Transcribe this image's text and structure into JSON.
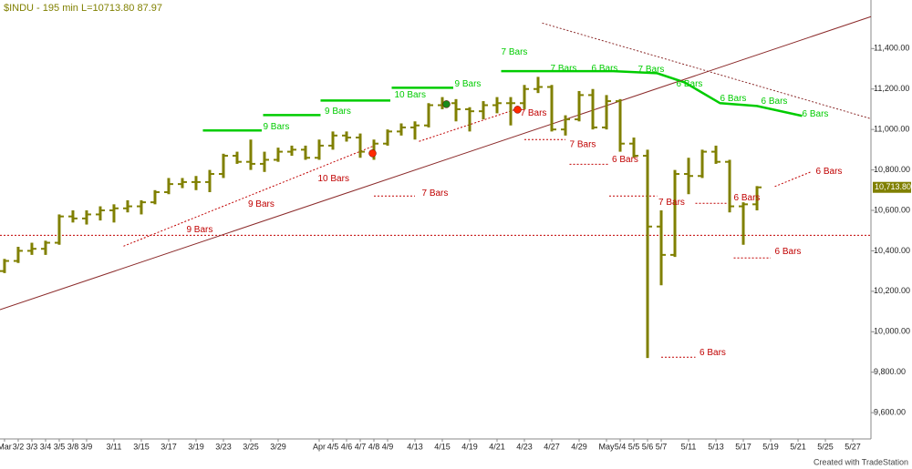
{
  "chart_data": {
    "type": "ohlc",
    "title": "$INDU - 195 min  L=10713.80  87.97",
    "footer": "Created with TradeStation",
    "color": "#808000",
    "ylim": [
      9470,
      11640
    ],
    "xlim": [
      -0.33,
      63.33
    ],
    "yticks": [
      {
        "value": 9600,
        "label": "9,600.00"
      },
      {
        "value": 9800,
        "label": "9,800.00"
      },
      {
        "value": 10000,
        "label": "10,000.00"
      },
      {
        "value": 10200,
        "label": "10,200.00"
      },
      {
        "value": 10400,
        "label": "10,400.00"
      },
      {
        "value": 10600,
        "label": "10,600.00"
      },
      {
        "value": 10800,
        "label": "10,800.00"
      },
      {
        "value": 11000,
        "label": "11,000.00"
      },
      {
        "value": 11200,
        "label": "11,200.00"
      },
      {
        "value": 11400,
        "label": "11,400.00"
      }
    ],
    "last_price": {
      "value": 10713.8,
      "label": "10,713.80"
    },
    "categories": [
      "Mar",
      "3/2",
      "3/3",
      "3/4",
      "3/5",
      "3/8",
      "3/9",
      null,
      "3/11",
      null,
      "3/15",
      null,
      "3/17",
      null,
      "3/19",
      null,
      "3/23",
      null,
      "3/25",
      null,
      "3/29",
      null,
      null,
      "Apr",
      "4/5",
      "4/6",
      "4/7",
      "4/8",
      "4/9",
      null,
      "4/13",
      null,
      "4/15",
      null,
      "4/19",
      null,
      "4/21",
      null,
      "4/23",
      null,
      "4/27",
      null,
      "4/29",
      null,
      "May",
      "5/4",
      "5/5",
      "5/6",
      "5/7",
      null,
      "5/11",
      null,
      "5/13",
      null,
      "5/17",
      null,
      "5/19",
      null,
      "5/21",
      null,
      "5/25",
      null,
      "5/27"
    ],
    "ohlc": [
      [
        10300,
        10360,
        10290,
        10350
      ],
      [
        10350,
        10420,
        10340,
        10400
      ],
      [
        10400,
        10440,
        10380,
        10410
      ],
      [
        10410,
        10450,
        10380,
        10440
      ],
      [
        10440,
        10580,
        10430,
        10570
      ],
      [
        10570,
        10600,
        10540,
        10560
      ],
      [
        10560,
        10600,
        10530,
        10580
      ],
      [
        10580,
        10620,
        10550,
        10600
      ],
      [
        10600,
        10630,
        10540,
        10610
      ],
      [
        10610,
        10650,
        10590,
        10620
      ],
      [
        10620,
        10650,
        10580,
        10640
      ],
      [
        10640,
        10700,
        10630,
        10690
      ],
      [
        10690,
        10760,
        10680,
        10730
      ],
      [
        10730,
        10760,
        10710,
        10740
      ],
      [
        10740,
        10770,
        10700,
        10740
      ],
      [
        10740,
        10800,
        10690,
        10780
      ],
      [
        10780,
        10880,
        10760,
        10870
      ],
      [
        10870,
        10890,
        10830,
        10840
      ],
      [
        10840,
        10950,
        10800,
        10830
      ],
      [
        10830,
        10890,
        10790,
        10850
      ],
      [
        10850,
        10910,
        10840,
        10890
      ],
      [
        10890,
        10920,
        10870,
        10900
      ],
      [
        10900,
        10920,
        10850,
        10860
      ],
      [
        10860,
        10950,
        10850,
        10920
      ],
      [
        10920,
        10990,
        10900,
        10970
      ],
      [
        10970,
        10990,
        10940,
        10960
      ],
      [
        10960,
        10980,
        10860,
        10890
      ],
      [
        10890,
        10950,
        10850,
        10930
      ],
      [
        10930,
        11000,
        10920,
        10990
      ],
      [
        10990,
        11030,
        10970,
        11010
      ],
      [
        11010,
        11040,
        10950,
        11020
      ],
      [
        11020,
        11130,
        11010,
        11120
      ],
      [
        11120,
        11160,
        11100,
        11130
      ],
      [
        11130,
        11150,
        11040,
        11100
      ],
      [
        11100,
        11110,
        10990,
        11090
      ],
      [
        11090,
        11140,
        11050,
        11120
      ],
      [
        11120,
        11160,
        11080,
        11130
      ],
      [
        11130,
        11160,
        11020,
        11130
      ],
      [
        11130,
        11220,
        11100,
        11200
      ],
      [
        11200,
        11260,
        11180,
        11210
      ],
      [
        11210,
        11220,
        10990,
        11000
      ],
      [
        11000,
        11070,
        10970,
        11050
      ],
      [
        11050,
        11190,
        11040,
        11170
      ],
      [
        11170,
        11200,
        11000,
        11010
      ],
      [
        11010,
        11170,
        11000,
        11140
      ],
      [
        11140,
        11150,
        10890,
        10930
      ],
      [
        10930,
        10960,
        10860,
        10870
      ],
      [
        10870,
        10900,
        9870,
        10520
      ],
      [
        10520,
        10600,
        10230,
        10380
      ],
      [
        10380,
        10800,
        10370,
        10780
      ],
      [
        10780,
        10860,
        10680,
        10770
      ],
      [
        10770,
        10900,
        10760,
        10890
      ],
      [
        10890,
        10920,
        10830,
        10840
      ],
      [
        10840,
        10850,
        10590,
        10620
      ],
      [
        10620,
        10640,
        10430,
        10630
      ],
      [
        10630,
        10720,
        10600,
        10713.8
      ],
      null,
      null,
      null,
      null,
      null,
      null,
      null
    ],
    "overlays": [
      {
        "color": "#00cc00",
        "dash": false,
        "x": [
          14.5,
          18.8
        ],
        "y": [
          10995,
          10995
        ]
      },
      {
        "color": "#00cc00",
        "dash": false,
        "x": [
          18.9,
          23.1
        ],
        "y": [
          11071,
          11071
        ]
      },
      {
        "color": "#00cc00",
        "dash": false,
        "x": [
          23.1,
          28.2
        ],
        "y": [
          11143,
          11143
        ]
      },
      {
        "color": "#00cc00",
        "dash": false,
        "x": [
          28.3,
          32.8
        ],
        "y": [
          11206,
          11206
        ]
      },
      {
        "color": "#00cc00",
        "dash": false,
        "x": [
          36.3,
          44.5,
          47.7,
          49.7,
          52.3,
          55,
          58.3
        ],
        "y": [
          11288,
          11288,
          11278,
          11233,
          11130,
          11116,
          11067
        ]
      },
      {
        "color": "#c00000",
        "dash": true,
        "x": [
          27,
          30
        ],
        "y": [
          10671,
          10671
        ]
      },
      {
        "color": "#c00000",
        "dash": true,
        "x": [
          38,
          41
        ],
        "y": [
          10950,
          10950
        ]
      },
      {
        "color": "#c00000",
        "dash": true,
        "x": [
          41.3,
          44.1
        ],
        "y": [
          10828,
          10828
        ]
      },
      {
        "color": "#c00000",
        "dash": true,
        "x": [
          44.2,
          47.7
        ],
        "y": [
          10671,
          10671
        ]
      },
      {
        "color": "#c00000",
        "dash": true,
        "x": [
          50.5,
          53
        ],
        "y": [
          10635,
          10635
        ]
      },
      {
        "color": "#c00000",
        "dash": true,
        "x": [
          53.3,
          56
        ],
        "y": [
          10365,
          10365
        ]
      },
      {
        "color": "#c00000",
        "dash": true,
        "x": [
          48,
          50.5
        ],
        "y": [
          9874,
          9874
        ]
      },
      {
        "color": "#c00000",
        "dash": true,
        "x": [
          56.3,
          59
        ],
        "y": [
          10718,
          10792
        ]
      },
      {
        "color": "#c00000",
        "dash": true,
        "x": [
          8.7,
          27
        ],
        "y": [
          10423,
          10919
        ]
      },
      {
        "color": "#c00000",
        "dash": true,
        "x": [
          30.3,
          37.3
        ],
        "y": [
          10941,
          11098
        ]
      },
      {
        "color": "#c00000",
        "dash": true,
        "x": [
          -0.33,
          63.33
        ],
        "y": [
          10477,
          10477
        ]
      },
      {
        "color": "#8b2a2a",
        "dash": false,
        "x": [
          -0.33,
          63.33
        ],
        "y": [
          10109,
          11558
        ]
      },
      {
        "color": "#8b2a2a",
        "dash": true,
        "x": [
          39.3,
          63.33
        ],
        "y": [
          11526,
          11053
        ]
      }
    ],
    "dots": [
      {
        "color": "#ff2a00",
        "x": 26.9,
        "y": 10882
      },
      {
        "color": "#1a8a1a",
        "x": 32.3,
        "y": 11125
      },
      {
        "color": "#ff2a00",
        "x": 37.5,
        "y": 11098
      }
    ],
    "labels": [
      {
        "text": "7 Bars",
        "color": "#00cc00",
        "x": 36.3,
        "y": 11382
      },
      {
        "text": "9 Bars",
        "color": "#00cc00",
        "x": 32.9,
        "y": 11224
      },
      {
        "text": "10 Bars",
        "color": "#00cc00",
        "x": 28.5,
        "y": 11170
      },
      {
        "text": "9 Bars",
        "color": "#00cc00",
        "x": 23.4,
        "y": 11089
      },
      {
        "text": "9 Bars",
        "color": "#00cc00",
        "x": 18.9,
        "y": 11013
      },
      {
        "text": "7 Bars",
        "color": "#00cc00",
        "x": 39.9,
        "y": 11301
      },
      {
        "text": "6 Bars",
        "color": "#00cc00",
        "x": 42.9,
        "y": 11301
      },
      {
        "text": "7 Bars",
        "color": "#00cc00",
        "x": 46.3,
        "y": 11296
      },
      {
        "text": "6 Bars",
        "color": "#00cc00",
        "x": 49.1,
        "y": 11224
      },
      {
        "text": "6 Bars",
        "color": "#00cc00",
        "x": 52.3,
        "y": 11152
      },
      {
        "text": "6 Bars",
        "color": "#00cc00",
        "x": 55.3,
        "y": 11139
      },
      {
        "text": "6 Bars",
        "color": "#00cc00",
        "x": 58.3,
        "y": 11076
      },
      {
        "text": "7 Bars",
        "color": "#c00000",
        "x": 37.7,
        "y": 11080
      },
      {
        "text": "7 Bars",
        "color": "#c00000",
        "x": 41.3,
        "y": 10925
      },
      {
        "text": "6 Bars",
        "color": "#c00000",
        "x": 44.4,
        "y": 10851
      },
      {
        "text": "7 Bars",
        "color": "#c00000",
        "x": 30.5,
        "y": 10684
      },
      {
        "text": "7 Bars",
        "color": "#c00000",
        "x": 47.8,
        "y": 10640
      },
      {
        "text": "6 Bars",
        "color": "#c00000",
        "x": 53.3,
        "y": 10662
      },
      {
        "text": "6 Bars",
        "color": "#c00000",
        "x": 56.3,
        "y": 10396
      },
      {
        "text": "6 Bars",
        "color": "#c00000",
        "x": 50.8,
        "y": 9897
      },
      {
        "text": "6 Bars",
        "color": "#c00000",
        "x": 59.3,
        "y": 10792
      },
      {
        "text": "10 Bars",
        "color": "#c00000",
        "x": 22.9,
        "y": 10756
      },
      {
        "text": "9 Bars",
        "color": "#c00000",
        "x": 17.8,
        "y": 10630
      },
      {
        "text": "9 Bars",
        "color": "#c00000",
        "x": 13.3,
        "y": 10504
      }
    ]
  }
}
